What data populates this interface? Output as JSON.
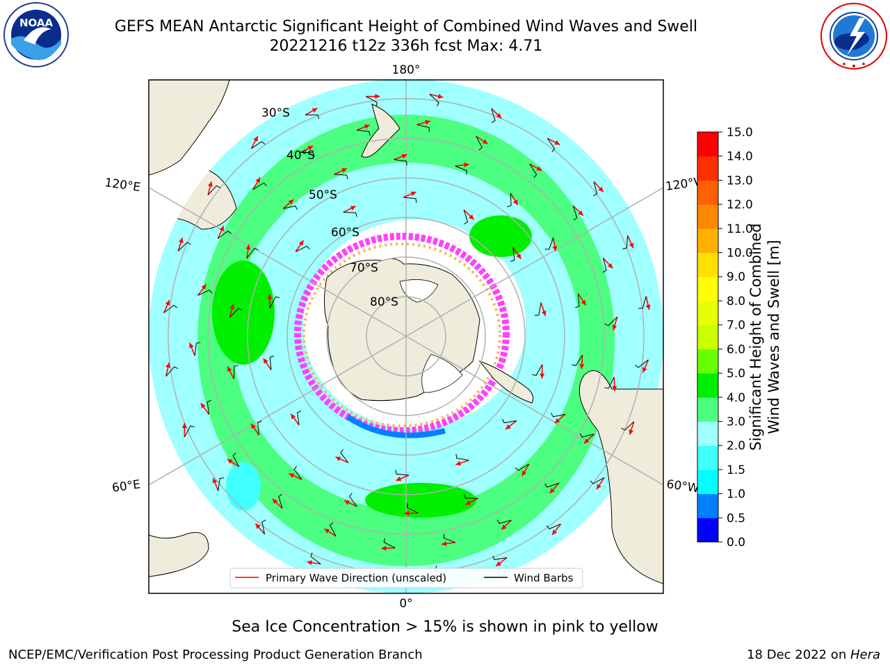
{
  "header": {
    "title_line1": "GEFS MEAN Antarctic Significant Height of Combined Wind Waves and Swell",
    "title_line2": "20221216 t12z 336h fcst   Max: 4.71"
  },
  "logos": {
    "left": {
      "text": "NOAA",
      "ring_text": "NATIONAL OCEANIC AND ATMOSPHERIC ADMINISTRATION · U.S. DEPARTMENT OF COMMERCE",
      "icon": "noaa-logo"
    },
    "right": {
      "ring_text": "NATIONAL WEATHER SERVICE",
      "icon": "nws-logo"
    }
  },
  "map": {
    "projection": "south-polar-stereographic",
    "lon_labels": {
      "top": "180°",
      "bottom": "0°",
      "left_upper": "120°E",
      "left_lower": "60°E",
      "right_upper": "120°W",
      "right_lower": "60°W"
    },
    "lat_labels": [
      "30°S",
      "40°S",
      "50°S",
      "60°S",
      "70°S",
      "80°S"
    ],
    "colors": {
      "land": "#efecdc",
      "ice_shelf": "#ffffff",
      "grid": "#b0b0b0"
    }
  },
  "legend": {
    "items": [
      {
        "label": "Primary Wave Direction (unscaled)",
        "color": "#ff0000"
      },
      {
        "label": "Wind Barbs",
        "color": "#000000"
      }
    ]
  },
  "colorbar": {
    "title_line1": "Significant Height of Combined",
    "title_line2": "Wind Waves and Swell [m]",
    "ticks": [
      "0.0",
      "0.5",
      "1.0",
      "1.5",
      "2.0",
      "3.0",
      "4.0",
      "5.0",
      "6.0",
      "7.0",
      "8.0",
      "9.0",
      "10.0",
      "11.0",
      "12.0",
      "13.0",
      "14.0",
      "15.0"
    ],
    "colors": [
      "#0000ff",
      "#0080ff",
      "#00ffff",
      "#40ffff",
      "#a0ffff",
      "#4cff80",
      "#00ee00",
      "#66ff00",
      "#ccff00",
      "#e8ff00",
      "#ffff00",
      "#ffe000",
      "#ffb000",
      "#ff8800",
      "#ff6000",
      "#ff3000",
      "#ff0000"
    ]
  },
  "note": "Sea Ice Concentration > 15% is shown in pink to yellow",
  "footer": {
    "left": "NCEP/EMC/Verification Post Processing Product Generation Branch",
    "date": "18 Dec 2022 on ",
    "host": "Hera"
  }
}
